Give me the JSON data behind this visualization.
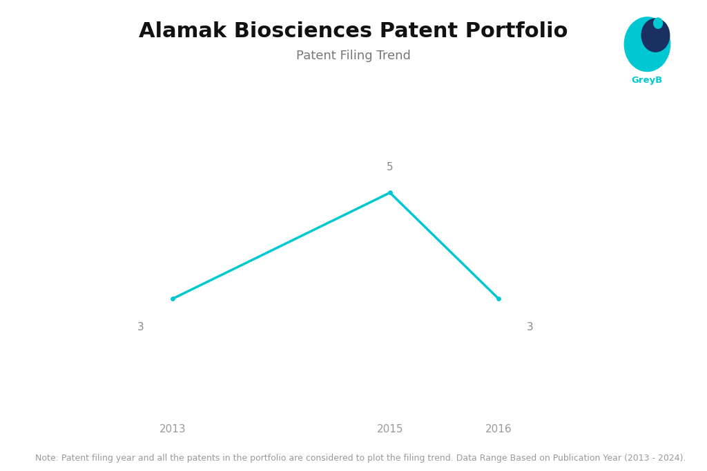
{
  "title": "Alamak Biosciences Patent Portfolio",
  "subtitle": "Patent Filing Trend",
  "x_values": [
    2013,
    2015,
    2016
  ],
  "y_values": [
    3,
    5,
    3
  ],
  "line_color": "#00C8D2",
  "line_width": 2.5,
  "point_labels": [
    "3",
    "5",
    "3"
  ],
  "x_tick_labels": [
    "2013",
    "2015",
    "2016"
  ],
  "ylim": [
    1.0,
    6.5
  ],
  "xlim": [
    2012.0,
    2017.2
  ],
  "title_fontsize": 22,
  "subtitle_fontsize": 13,
  "label_fontsize": 11,
  "xtick_fontsize": 11,
  "note_text": "Note: Patent filing year and all the patents in the portfolio are considered to plot the filing trend. Data Range Based on Publication Year (2013 - 2024).",
  "note_fontsize": 9,
  "background_color": "#ffffff",
  "title_color": "#111111",
  "subtitle_color": "#777777",
  "tick_label_color": "#999999",
  "data_label_color": "#888888",
  "note_color": "#999999",
  "logo_teal": "#00C8D2",
  "logo_navy": "#1a3060"
}
